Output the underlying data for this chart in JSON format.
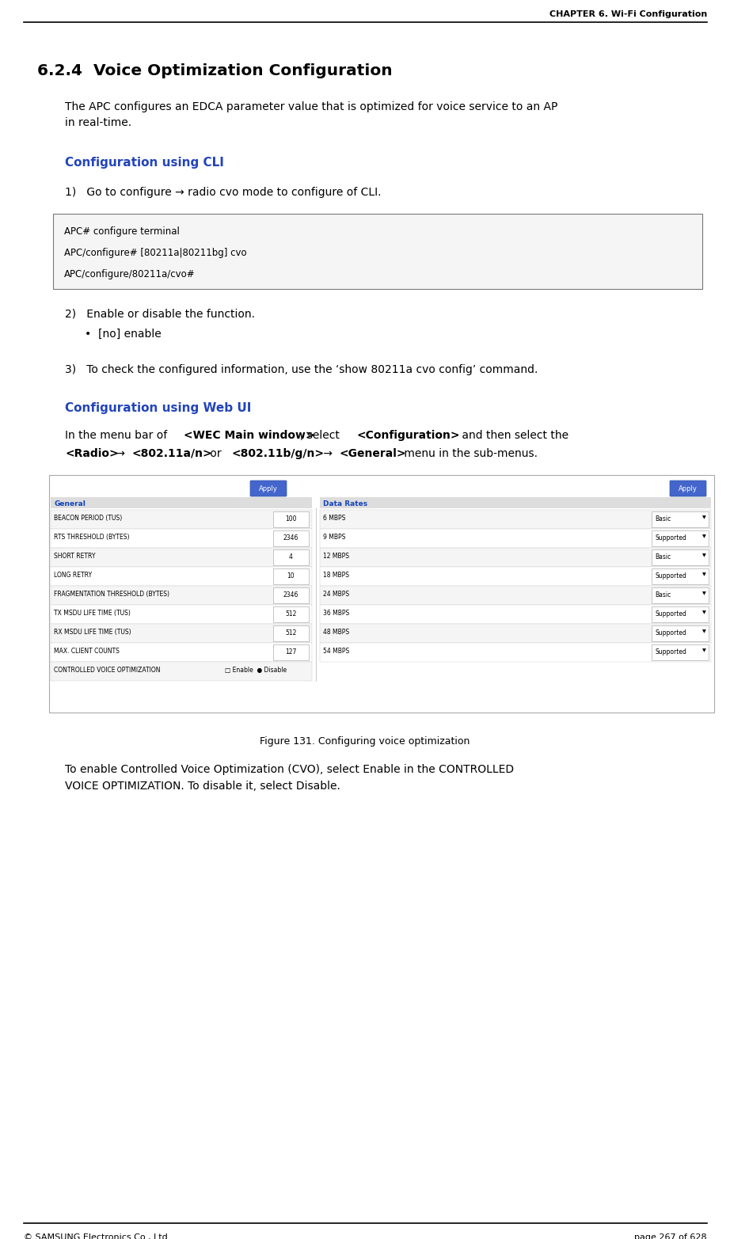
{
  "header_text": "CHAPTER 6. Wi-Fi Configuration",
  "section_number": "6.2.4",
  "section_title": "  Voice Optimization Configuration",
  "body_text_1a": "The APC configures an EDCA parameter value that is optimized for voice service to an AP",
  "body_text_1b": "in real-time.",
  "cli_heading": "Configuration using CLI",
  "step1_text": "1)   Go to configure → radio cvo mode to configure of CLI.",
  "code_lines": [
    "APC# configure terminal",
    "APC/configure# [80211a|80211bg] cvo",
    "APC/configure/80211a/cvo#"
  ],
  "step2_text": "2)   Enable or disable the function.",
  "step2_bullet": "•  [no] enable",
  "step3_text": "3)   To check the configured information, use the ‘show 80211a cvo config’ command.",
  "web_heading": "Configuration using Web UI",
  "web_line1_plain1": "In the menu bar of ",
  "web_line1_bold1": "<WEC Main window>",
  "web_line1_plain2": ", select ",
  "web_line1_bold2": "<Configuration>",
  "web_line1_plain3": " and then select the",
  "web_line2_bold1": "<Radio>",
  "web_line2_arrow1": " → ",
  "web_line2_bold2": "<802.11a/n>",
  "web_line2_plain1": " or ",
  "web_line2_bold3": "<802.11b/g/n>",
  "web_line2_arrow2": " → ",
  "web_line2_bold4": "<General>",
  "web_line2_plain2": " menu in the sub-menus.",
  "figure_caption": "Figure 131. Configuring voice optimization",
  "footer_left": "© SAMSUNG Electronics Co., Ltd.",
  "footer_right": "page 267 of 628",
  "heading_color": "#2244BB",
  "text_color": "#000000",
  "code_bg": "#F8F8F8",
  "border_color": "#888888",
  "post_figure_text_a": "To enable Controlled Voice Optimization (CVO), select Enable in the CONTROLLED",
  "post_figure_text_b": "VOICE OPTIMIZATION. To disable it, select Disable.",
  "left_rows": [
    [
      "BEACON PERIOD (TUS)",
      "100"
    ],
    [
      "RTS THRESHOLD (BYTES)",
      "2346"
    ],
    [
      "SHORT RETRY",
      "4"
    ],
    [
      "LONG RETRY",
      "10"
    ],
    [
      "FRAGMENTATION THRESHOLD (BYTES)",
      "2346"
    ],
    [
      "TX MSDU LIFE TIME (TUS)",
      "512"
    ],
    [
      "RX MSDU LIFE TIME (TUS)",
      "512"
    ],
    [
      "MAX. CLIENT COUNTS",
      "127"
    ],
    [
      "CONTROLLED VOICE OPTIMIZATION",
      "cvo_special"
    ]
  ],
  "right_rows": [
    [
      "6 MBPS",
      "Basic"
    ],
    [
      "9 MBPS",
      "Supported"
    ],
    [
      "12 MBPS",
      "Basic"
    ],
    [
      "18 MBPS",
      "Supported"
    ],
    [
      "24 MBPS",
      "Basic"
    ],
    [
      "36 MBPS",
      "Supported"
    ],
    [
      "48 MBPS",
      "Supported"
    ],
    [
      "54 MBPS",
      "Supported"
    ]
  ]
}
